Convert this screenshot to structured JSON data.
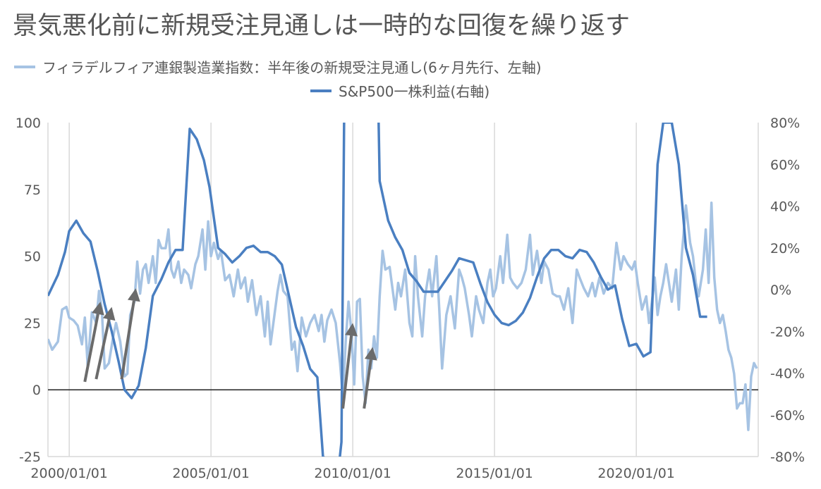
{
  "title": "景気悪化前に新規受注見通しは一時的な回復を繰り返す",
  "colors": {
    "philly": "#a6c3e3",
    "sp500": "#4a7fc1",
    "arrow": "#6b6b6b",
    "grid": "#d9d9d9"
  },
  "chart_data": {
    "type": "line",
    "title": "景気悪化前に新規受注見通しは一時的な回復を繰り返す",
    "legend_placement": "top",
    "grid": "vertical",
    "x_ticks": [
      "2000/01/01",
      "2005/01/01",
      "2010/01/01",
      "2015/01/01",
      "2020/01/01"
    ],
    "y_left": {
      "range": [
        -25,
        100
      ],
      "ticks": [
        "100",
        "75",
        "50",
        "25",
        "0",
        "-25"
      ]
    },
    "y_right": {
      "range": [
        -0.8,
        0.8
      ],
      "ticks": [
        "80%",
        "60%",
        "40%",
        "20%",
        "0%",
        "-20%",
        "-40%",
        "-60%",
        "-80%"
      ]
    },
    "series": [
      {
        "name": "フィラデルフィア連銀製造業指数：半年後の新規受注見通し(6ヶ月先行、左軸)",
        "axis": "left",
        "color": "#a6c3e3",
        "points": [
          [
            1999.25,
            19
          ],
          [
            1999.4,
            15
          ],
          [
            1999.6,
            18
          ],
          [
            1999.75,
            30
          ],
          [
            1999.9,
            31
          ],
          [
            2000.0,
            27
          ],
          [
            2000.15,
            26
          ],
          [
            2000.3,
            24
          ],
          [
            2000.45,
            17
          ],
          [
            2000.55,
            27
          ],
          [
            2000.65,
            9
          ],
          [
            2000.8,
            29
          ],
          [
            2000.95,
            25
          ],
          [
            2001.05,
            37
          ],
          [
            2001.15,
            30
          ],
          [
            2001.25,
            8
          ],
          [
            2001.4,
            10
          ],
          [
            2001.55,
            20
          ],
          [
            2001.65,
            25
          ],
          [
            2001.8,
            18
          ],
          [
            2001.95,
            5
          ],
          [
            2002.05,
            6
          ],
          [
            2002.15,
            28
          ],
          [
            2002.3,
            33
          ],
          [
            2002.4,
            48
          ],
          [
            2002.5,
            36
          ],
          [
            2002.6,
            45
          ],
          [
            2002.7,
            47
          ],
          [
            2002.8,
            40
          ],
          [
            2002.95,
            50
          ],
          [
            2003.05,
            40
          ],
          [
            2003.15,
            56
          ],
          [
            2003.25,
            53
          ],
          [
            2003.4,
            53
          ],
          [
            2003.5,
            60
          ],
          [
            2003.6,
            45
          ],
          [
            2003.7,
            42
          ],
          [
            2003.85,
            48
          ],
          [
            2003.95,
            40
          ],
          [
            2004.05,
            45
          ],
          [
            2004.2,
            43
          ],
          [
            2004.3,
            38
          ],
          [
            2004.45,
            47
          ],
          [
            2004.55,
            50
          ],
          [
            2004.7,
            60
          ],
          [
            2004.8,
            45
          ],
          [
            2004.9,
            63
          ],
          [
            2005.0,
            50
          ],
          [
            2005.1,
            55
          ],
          [
            2005.25,
            49
          ],
          [
            2005.35,
            52
          ],
          [
            2005.5,
            41
          ],
          [
            2005.65,
            43
          ],
          [
            2005.8,
            35
          ],
          [
            2005.95,
            45
          ],
          [
            2006.05,
            38
          ],
          [
            2006.2,
            42
          ],
          [
            2006.3,
            33
          ],
          [
            2006.45,
            41
          ],
          [
            2006.6,
            28
          ],
          [
            2006.75,
            35
          ],
          [
            2006.9,
            20
          ],
          [
            2007.0,
            33
          ],
          [
            2007.1,
            17
          ],
          [
            2007.2,
            25
          ],
          [
            2007.35,
            37
          ],
          [
            2007.45,
            43
          ],
          [
            2007.55,
            37
          ],
          [
            2007.7,
            35
          ],
          [
            2007.85,
            15
          ],
          [
            2007.95,
            18
          ],
          [
            2008.05,
            7
          ],
          [
            2008.2,
            27
          ],
          [
            2008.35,
            20
          ],
          [
            2008.5,
            25
          ],
          [
            2008.65,
            28
          ],
          [
            2008.8,
            22
          ],
          [
            2008.9,
            28
          ],
          [
            2009.0,
            18
          ],
          [
            2009.1,
            26
          ],
          [
            2009.25,
            30
          ],
          [
            2009.4,
            25
          ],
          [
            2009.55,
            10
          ],
          [
            2009.65,
            -3
          ],
          [
            2009.75,
            18
          ],
          [
            2009.85,
            33
          ],
          [
            2009.95,
            22
          ],
          [
            2010.05,
            2
          ],
          [
            2010.15,
            33
          ],
          [
            2010.25,
            34
          ],
          [
            2010.35,
            5
          ],
          [
            2010.45,
            -5
          ],
          [
            2010.55,
            15
          ],
          [
            2010.65,
            8
          ],
          [
            2010.75,
            20
          ],
          [
            2010.85,
            12
          ],
          [
            2010.95,
            35
          ],
          [
            2011.05,
            52
          ],
          [
            2011.15,
            45
          ],
          [
            2011.3,
            46
          ],
          [
            2011.4,
            38
          ],
          [
            2011.5,
            30
          ],
          [
            2011.6,
            40
          ],
          [
            2011.7,
            35
          ],
          [
            2011.85,
            45
          ],
          [
            2012.0,
            25
          ],
          [
            2012.1,
            20
          ],
          [
            2012.2,
            50
          ],
          [
            2012.3,
            35
          ],
          [
            2012.45,
            20
          ],
          [
            2012.55,
            35
          ],
          [
            2012.7,
            45
          ],
          [
            2012.8,
            35
          ],
          [
            2012.95,
            50
          ],
          [
            2013.05,
            30
          ],
          [
            2013.15,
            8
          ],
          [
            2013.3,
            28
          ],
          [
            2013.45,
            35
          ],
          [
            2013.6,
            23
          ],
          [
            2013.75,
            45
          ],
          [
            2013.85,
            42
          ],
          [
            2013.95,
            38
          ],
          [
            2014.1,
            28
          ],
          [
            2014.2,
            20
          ],
          [
            2014.35,
            35
          ],
          [
            2014.45,
            30
          ],
          [
            2014.6,
            25
          ],
          [
            2014.75,
            40
          ],
          [
            2014.85,
            45
          ],
          [
            2014.95,
            35
          ],
          [
            2015.05,
            38
          ],
          [
            2015.2,
            50
          ],
          [
            2015.3,
            40
          ],
          [
            2015.45,
            58
          ],
          [
            2015.55,
            42
          ],
          [
            2015.65,
            40
          ],
          [
            2015.8,
            38
          ],
          [
            2015.95,
            40
          ],
          [
            2016.1,
            45
          ],
          [
            2016.25,
            58
          ],
          [
            2016.35,
            43
          ],
          [
            2016.5,
            52
          ],
          [
            2016.65,
            40
          ],
          [
            2016.75,
            48
          ],
          [
            2016.9,
            45
          ],
          [
            2017.05,
            36
          ],
          [
            2017.2,
            35
          ],
          [
            2017.3,
            35
          ],
          [
            2017.45,
            30
          ],
          [
            2017.6,
            38
          ],
          [
            2017.75,
            25
          ],
          [
            2017.9,
            45
          ],
          [
            2018.0,
            42
          ],
          [
            2018.15,
            38
          ],
          [
            2018.3,
            35
          ],
          [
            2018.45,
            40
          ],
          [
            2018.55,
            35
          ],
          [
            2018.7,
            42
          ],
          [
            2018.85,
            36
          ],
          [
            2019.0,
            40
          ],
          [
            2019.15,
            38
          ],
          [
            2019.3,
            55
          ],
          [
            2019.45,
            45
          ],
          [
            2019.55,
            50
          ],
          [
            2019.7,
            47
          ],
          [
            2019.85,
            45
          ],
          [
            2019.95,
            48
          ],
          [
            2020.05,
            40
          ],
          [
            2020.2,
            30
          ],
          [
            2020.35,
            35
          ],
          [
            2020.45,
            25
          ],
          [
            2020.55,
            33
          ],
          [
            2020.65,
            42
          ],
          [
            2020.75,
            28
          ],
          [
            2020.85,
            35
          ],
          [
            2020.95,
            40
          ],
          [
            2021.05,
            47
          ],
          [
            2021.15,
            40
          ],
          [
            2021.25,
            33
          ],
          [
            2021.4,
            45
          ],
          [
            2021.5,
            30
          ],
          [
            2021.6,
            50
          ],
          [
            2021.75,
            69
          ],
          [
            2021.9,
            55
          ],
          [
            2022.0,
            50
          ],
          [
            2022.1,
            40
          ],
          [
            2022.2,
            35
          ],
          [
            2022.35,
            45
          ],
          [
            2022.45,
            60
          ],
          [
            2022.55,
            40
          ],
          [
            2022.65,
            70
          ],
          [
            2022.75,
            42
          ],
          [
            2022.85,
            30
          ],
          [
            2022.95,
            25
          ],
          [
            2023.05,
            28
          ],
          [
            2023.15,
            22
          ],
          [
            2023.25,
            15
          ],
          [
            2023.35,
            12
          ],
          [
            2023.45,
            6
          ],
          [
            2023.55,
            -7
          ],
          [
            2023.65,
            -5
          ],
          [
            2023.75,
            -5
          ],
          [
            2023.85,
            2
          ],
          [
            2023.95,
            -15
          ],
          [
            2024.05,
            5
          ],
          [
            2024.15,
            10
          ],
          [
            2024.25,
            8
          ]
        ]
      },
      {
        "name": "S&P500一株利益(右軸)",
        "axis": "right",
        "color": "#4a7fc1",
        "points": [
          [
            1999.25,
            -0.03
          ],
          [
            1999.6,
            0.07
          ],
          [
            1999.85,
            0.18
          ],
          [
            2000.0,
            0.28
          ],
          [
            2000.25,
            0.33
          ],
          [
            2000.5,
            0.27
          ],
          [
            2000.75,
            0.23
          ],
          [
            2001.0,
            0.09
          ],
          [
            2001.25,
            -0.07
          ],
          [
            2001.5,
            -0.2
          ],
          [
            2001.75,
            -0.35
          ],
          [
            2001.95,
            -0.48
          ],
          [
            2002.2,
            -0.52
          ],
          [
            2002.45,
            -0.46
          ],
          [
            2002.7,
            -0.28
          ],
          [
            2002.95,
            -0.03
          ],
          [
            2003.25,
            0.05
          ],
          [
            2003.5,
            0.13
          ],
          [
            2003.75,
            0.19
          ],
          [
            2004.0,
            0.19
          ],
          [
            2004.25,
            0.77
          ],
          [
            2004.5,
            0.72
          ],
          [
            2004.75,
            0.62
          ],
          [
            2004.95,
            0.49
          ],
          [
            2005.25,
            0.2
          ],
          [
            2005.5,
            0.17
          ],
          [
            2005.75,
            0.13
          ],
          [
            2006.0,
            0.16
          ],
          [
            2006.25,
            0.2
          ],
          [
            2006.5,
            0.21
          ],
          [
            2006.75,
            0.18
          ],
          [
            2007.0,
            0.18
          ],
          [
            2007.25,
            0.16
          ],
          [
            2007.5,
            0.12
          ],
          [
            2007.75,
            -0.03
          ],
          [
            2008.0,
            -0.18
          ],
          [
            2008.25,
            -0.27
          ],
          [
            2008.5,
            -0.38
          ],
          [
            2008.75,
            -0.42
          ],
          [
            2008.95,
            -0.8
          ],
          [
            2009.25,
            -0.83
          ],
          [
            2009.5,
            -0.86
          ],
          [
            2009.6,
            -0.73
          ],
          [
            2009.7,
            0.9
          ],
          [
            2010.9,
            0.9
          ],
          [
            2010.95,
            0.52
          ],
          [
            2011.25,
            0.33
          ],
          [
            2011.5,
            0.25
          ],
          [
            2011.75,
            0.19
          ],
          [
            2012.0,
            0.08
          ],
          [
            2012.25,
            0.04
          ],
          [
            2012.5,
            -0.01
          ],
          [
            2012.75,
            -0.01
          ],
          [
            2013.0,
            -0.01
          ],
          [
            2013.25,
            0.04
          ],
          [
            2013.5,
            0.09
          ],
          [
            2013.75,
            0.15
          ],
          [
            2014.0,
            0.14
          ],
          [
            2014.25,
            0.13
          ],
          [
            2014.5,
            0.03
          ],
          [
            2014.75,
            -0.06
          ],
          [
            2015.0,
            -0.12
          ],
          [
            2015.25,
            -0.16
          ],
          [
            2015.5,
            -0.17
          ],
          [
            2015.75,
            -0.15
          ],
          [
            2016.0,
            -0.11
          ],
          [
            2016.25,
            -0.04
          ],
          [
            2016.5,
            0.06
          ],
          [
            2016.75,
            0.15
          ],
          [
            2017.0,
            0.19
          ],
          [
            2017.25,
            0.19
          ],
          [
            2017.5,
            0.16
          ],
          [
            2017.75,
            0.15
          ],
          [
            2018.0,
            0.19
          ],
          [
            2018.25,
            0.18
          ],
          [
            2018.5,
            0.13
          ],
          [
            2018.75,
            0.06
          ],
          [
            2019.0,
            0.0
          ],
          [
            2019.25,
            0.02
          ],
          [
            2019.5,
            -0.14
          ],
          [
            2019.75,
            -0.27
          ],
          [
            2020.0,
            -0.26
          ],
          [
            2020.25,
            -0.32
          ],
          [
            2020.5,
            -0.3
          ],
          [
            2020.75,
            0.6
          ],
          [
            2020.95,
            0.8
          ],
          [
            2021.25,
            0.8
          ],
          [
            2021.5,
            0.6
          ],
          [
            2021.75,
            0.2
          ],
          [
            2022.0,
            0.07
          ],
          [
            2022.25,
            -0.13
          ],
          [
            2022.5,
            -0.13
          ]
        ]
      }
    ]
  }
}
